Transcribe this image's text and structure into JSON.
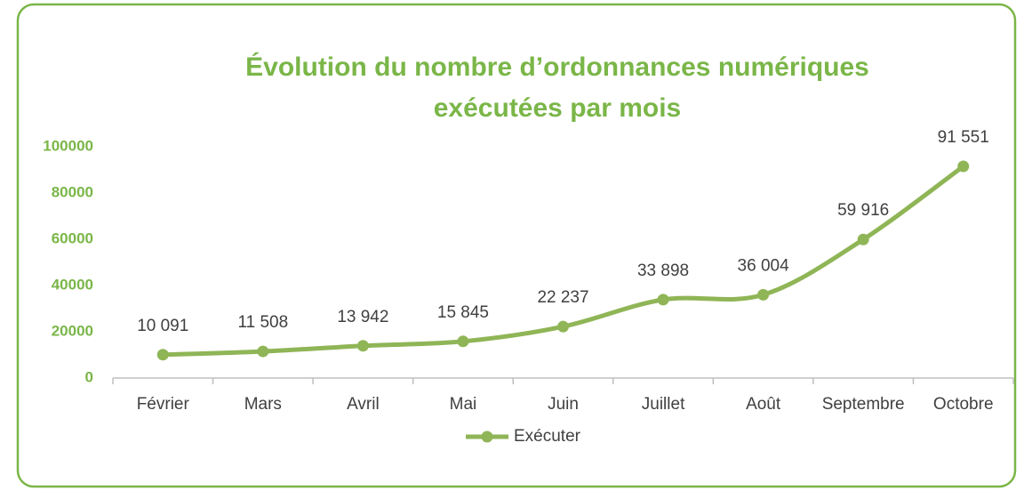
{
  "chart_data": {
    "type": "line",
    "title": [
      "Évolution du nombre d’ordonnances numériques",
      "exécutées par mois"
    ],
    "categories": [
      "Février",
      "Mars",
      "Avril",
      "Mai",
      "Juin",
      "Juillet",
      "Août",
      "Septembre",
      "Octobre"
    ],
    "series": [
      {
        "name": "Exécuter",
        "color": "#8fb556",
        "values": [
          10091,
          11508,
          13942,
          15845,
          22237,
          33898,
          36004,
          59916,
          91551
        ],
        "value_labels": [
          "10 091",
          "11 508",
          "13 942",
          "15 845",
          "22 237",
          "33 898",
          "36 004",
          "59 916",
          "91 551"
        ]
      }
    ],
    "ylim": [
      0,
      100000
    ],
    "yticks": [
      0,
      20000,
      40000,
      60000,
      80000,
      100000
    ],
    "grid": false,
    "smooth": true,
    "legend": "bottom"
  }
}
